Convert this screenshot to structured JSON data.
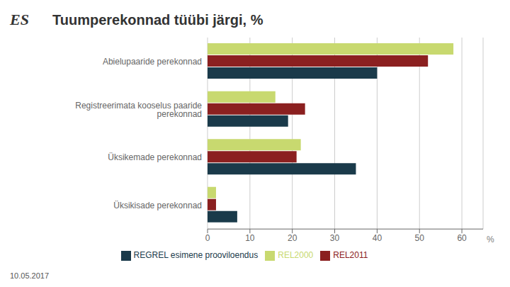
{
  "chart_data": {
    "type": "bar",
    "orientation": "horizontal",
    "title": "Tuumperekonnad tüübi järgi, %",
    "xlabel": "%",
    "categories": [
      "Abielupaaride perekonnad",
      "Registreerimata kooselus paaride perekonnad",
      "Üksikemade perekonnad",
      "Üksikisade perekonnad"
    ],
    "series": [
      {
        "name": "REL2000",
        "color": "#c8d96f",
        "values": [
          58,
          16,
          22,
          2
        ]
      },
      {
        "name": "REL2011",
        "color": "#8b2020",
        "values": [
          52,
          23,
          21,
          2
        ]
      },
      {
        "name": "REGREL esimene prooviloendus",
        "color": "#1a3a4a",
        "values": [
          40,
          19,
          35,
          7
        ]
      }
    ],
    "xlim": [
      0,
      65
    ],
    "xticks": [
      0,
      10,
      20,
      30,
      40,
      50,
      60
    ],
    "grid": true,
    "legend": "bottom",
    "annotations": [
      "ES",
      "10.05.2017"
    ]
  }
}
